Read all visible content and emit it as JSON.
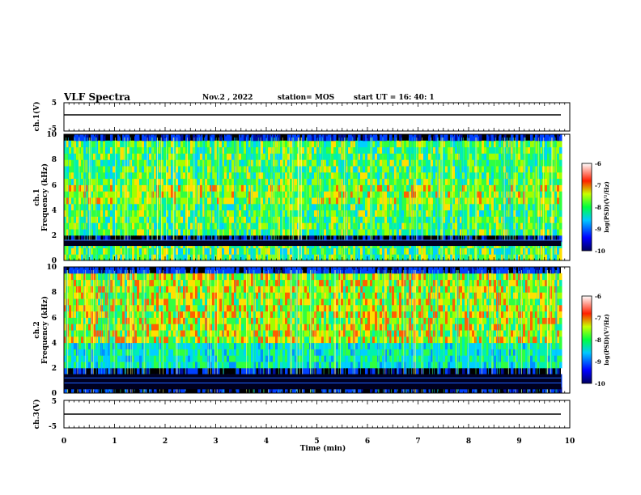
{
  "header": {
    "title": "VLF Spectra",
    "date": "Nov.2 , 2022",
    "station": "station= MOS",
    "start_ut": "start UT = 16: 40: 1"
  },
  "chart_data": [
    {
      "type": "line",
      "panel": "ch1-waveform",
      "ylabel": "ch.1(V)",
      "ylim": [
        -5,
        5
      ],
      "yticks": [
        "5",
        "-5"
      ],
      "xlim": [
        0,
        10
      ],
      "series": [
        {
          "x": [
            0,
            9.83
          ],
          "y": [
            0,
            0
          ]
        }
      ]
    },
    {
      "type": "heatmap",
      "panel": "ch1-spectrogram",
      "ylabel": "ch.1\nFrequency (kHz)",
      "ylim": [
        0,
        10
      ],
      "yticks": [
        "0",
        "2",
        "4",
        "6",
        "8",
        "10"
      ],
      "xlim": [
        0,
        10
      ],
      "x_data_end": 9.83,
      "colorbar": {
        "label": "log(PSD)(V²/Hz)",
        "range": [
          -10,
          -6
        ],
        "ticks": [
          "-6",
          "-7",
          "-8",
          "-9",
          "-10"
        ]
      }
    },
    {
      "type": "heatmap",
      "panel": "ch2-spectrogram",
      "ylabel": "ch.2\nFrequency (kHz)",
      "ylim": [
        0,
        10
      ],
      "yticks": [
        "0",
        "2",
        "4",
        "6",
        "8",
        "10"
      ],
      "xlim": [
        0,
        10
      ],
      "x_data_end": 9.83,
      "colorbar": {
        "label": "log(PSD)(V²/Hz)",
        "range": [
          -10,
          -6
        ],
        "ticks": [
          "-6",
          "-7",
          "-8",
          "-9",
          "-10"
        ]
      }
    },
    {
      "type": "line",
      "panel": "ch3-waveform",
      "ylabel": "ch.3(V)",
      "ylim": [
        -5,
        5
      ],
      "yticks": [
        "5",
        "-5"
      ],
      "xlim": [
        0,
        10
      ],
      "series": [
        {
          "x": [
            0,
            9.83
          ],
          "y": [
            0,
            0
          ]
        }
      ]
    }
  ],
  "xaxis": {
    "label": "Time (min)",
    "ticks": [
      "0",
      "1",
      "2",
      "3",
      "4",
      "5",
      "6",
      "7",
      "8",
      "9",
      "10"
    ]
  }
}
